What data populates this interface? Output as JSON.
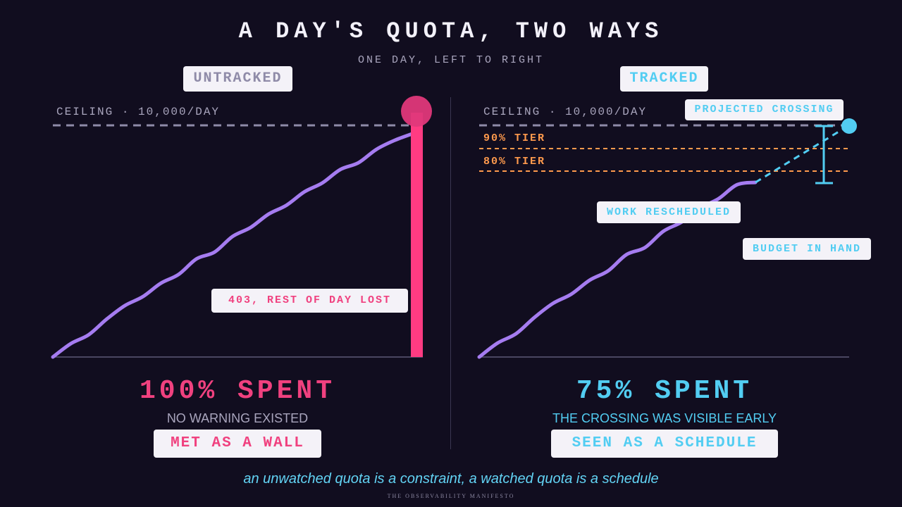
{
  "title": "A DAY'S QUOTA, TWO WAYS",
  "subtitle": "ONE DAY, LEFT TO RIGHT",
  "footer": "THE OBSERVABILITY MANIFESTO",
  "tagline": "an unwatched quota is a constraint, a watched quota is a schedule",
  "colors": {
    "background": "#110d1f",
    "usage_line": "#a57cf0",
    "wall": "#ff3b82",
    "accent_pink": "#f0417f",
    "accent_cyan": "#52cdf2",
    "tier": "#ff9a4d",
    "ceiling": "#8f8ba8"
  },
  "left_panel": {
    "heading": "UNTRACKED",
    "ceiling_label": "CEILING · 10,000/DAY",
    "wall_callout": "403, REST OF DAY LOST",
    "stat": "100% SPENT",
    "note": "NO WARNING EXISTED",
    "result": "MET AS A WALL"
  },
  "right_panel": {
    "heading": "TRACKED",
    "ceiling_label": "CEILING · 10,000/DAY",
    "tier_90_label": "90% TIER",
    "tier_80_label": "80% TIER",
    "projected_label": "PROJECTED CROSSING",
    "rescheduled_label": "WORK RESCHEDULED",
    "budget_label": "BUDGET IN HAND",
    "stat": "75% SPENT",
    "note": "THE CROSSING WAS VISIBLE EARLY",
    "result": "SEEN AS A SCHEDULE"
  },
  "chart_data": [
    {
      "type": "line",
      "panel": "untracked",
      "ceiling": 100,
      "ylim": [
        0,
        100
      ],
      "x": [
        0,
        0.05,
        0.1,
        0.15,
        0.2,
        0.25,
        0.3,
        0.35,
        0.4,
        0.45,
        0.5,
        0.55,
        0.6,
        0.65,
        0.7,
        0.75,
        0.8,
        0.85,
        0.9,
        0.95,
        1.0
      ],
      "values": [
        0,
        6,
        10,
        17,
        23,
        27,
        33,
        37,
        44,
        47,
        54,
        58,
        64,
        68,
        74,
        78,
        84,
        87,
        93,
        97,
        100
      ],
      "wall_at_x": 1.0
    },
    {
      "type": "line",
      "panel": "tracked",
      "ceiling": 100,
      "tiers": [
        90,
        80
      ],
      "ylim": [
        0,
        100
      ],
      "x": [
        0,
        0.05,
        0.1,
        0.15,
        0.2,
        0.25,
        0.3,
        0.35,
        0.4,
        0.45,
        0.5,
        0.55,
        0.6,
        0.65,
        0.7,
        0.75
      ],
      "values": [
        0,
        6,
        10,
        17,
        23,
        27,
        33,
        37,
        44,
        47,
        54,
        58,
        64,
        68,
        74,
        75
      ],
      "projection": {
        "x": [
          0.75,
          1.0
        ],
        "values": [
          75,
          100
        ]
      }
    }
  ]
}
